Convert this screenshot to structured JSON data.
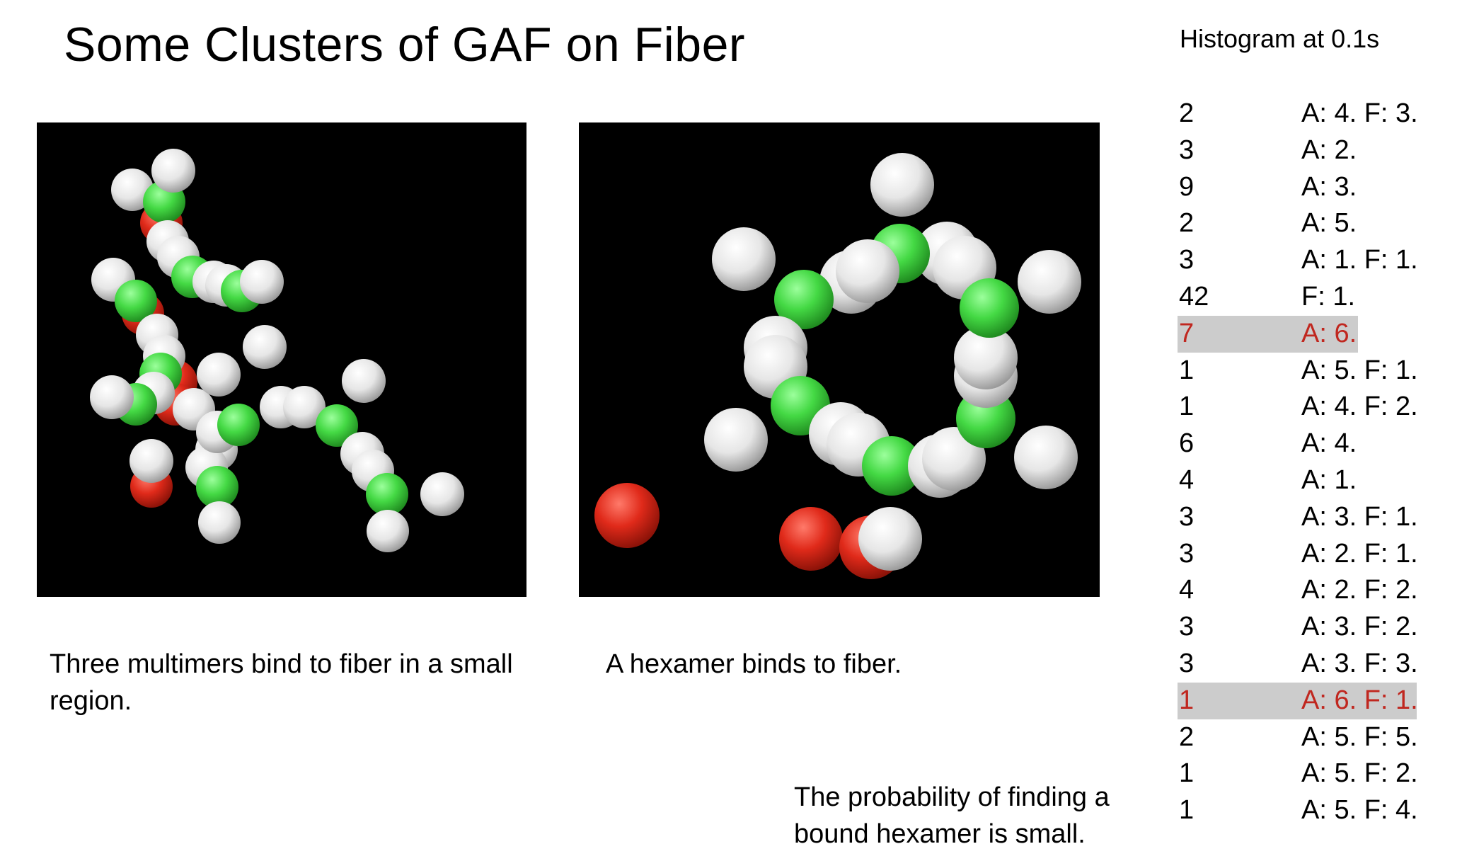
{
  "title": "Some Clusters of GAF on Fiber",
  "histogram_title": "Histogram at 0.1s",
  "colors": {
    "highlight_text": "#c0271f",
    "highlight_bg": "#cccccc",
    "sphere_white": "#f2f2f2",
    "sphere_green": "#44d944",
    "sphere_red": "#e02a1a",
    "panel_bg": "#000000"
  },
  "captions": {
    "left": "Three multimers bind to fiber in a small region.",
    "right": "A hexamer binds to fiber.",
    "bottom": "The probability of finding a bound hexamer is small."
  },
  "histogram": [
    {
      "count": "2",
      "composition": "A: 4. F: 3.",
      "highlight": false
    },
    {
      "count": "3",
      "composition": "A: 2.",
      "highlight": false
    },
    {
      "count": "9",
      "composition": "A: 3.",
      "highlight": false
    },
    {
      "count": "2",
      "composition": "A: 5.",
      "highlight": false
    },
    {
      "count": "3",
      "composition": "A: 1. F: 1.",
      "highlight": false
    },
    {
      "count": "42",
      "composition": "F: 1.",
      "highlight": false
    },
    {
      "count": "7",
      "composition": "A: 6.",
      "highlight": true
    },
    {
      "count": "1",
      "composition": "A: 5. F: 1.",
      "highlight": false
    },
    {
      "count": "1",
      "composition": "A: 4. F: 2.",
      "highlight": false
    },
    {
      "count": "6",
      "composition": "A: 4.",
      "highlight": false
    },
    {
      "count": "4",
      "composition": "A: 1.",
      "highlight": false
    },
    {
      "count": "3",
      "composition": "A: 3. F: 1.",
      "highlight": false
    },
    {
      "count": "3",
      "composition": "A: 2. F: 1.",
      "highlight": false
    },
    {
      "count": "4",
      "composition": "A: 2. F: 2.",
      "highlight": false
    },
    {
      "count": "3",
      "composition": "A: 3. F: 2.",
      "highlight": false
    },
    {
      "count": "3",
      "composition": "A: 3. F: 3.",
      "highlight": false
    },
    {
      "count": "1",
      "composition": "A: 6. F: 1.",
      "highlight": true
    },
    {
      "count": "2",
      "composition": "A: 5. F: 5.",
      "highlight": false
    },
    {
      "count": "1",
      "composition": "A: 5. F: 2.",
      "highlight": false
    },
    {
      "count": "1",
      "composition": "A: 5. F: 4.",
      "highlight": false
    }
  ]
}
